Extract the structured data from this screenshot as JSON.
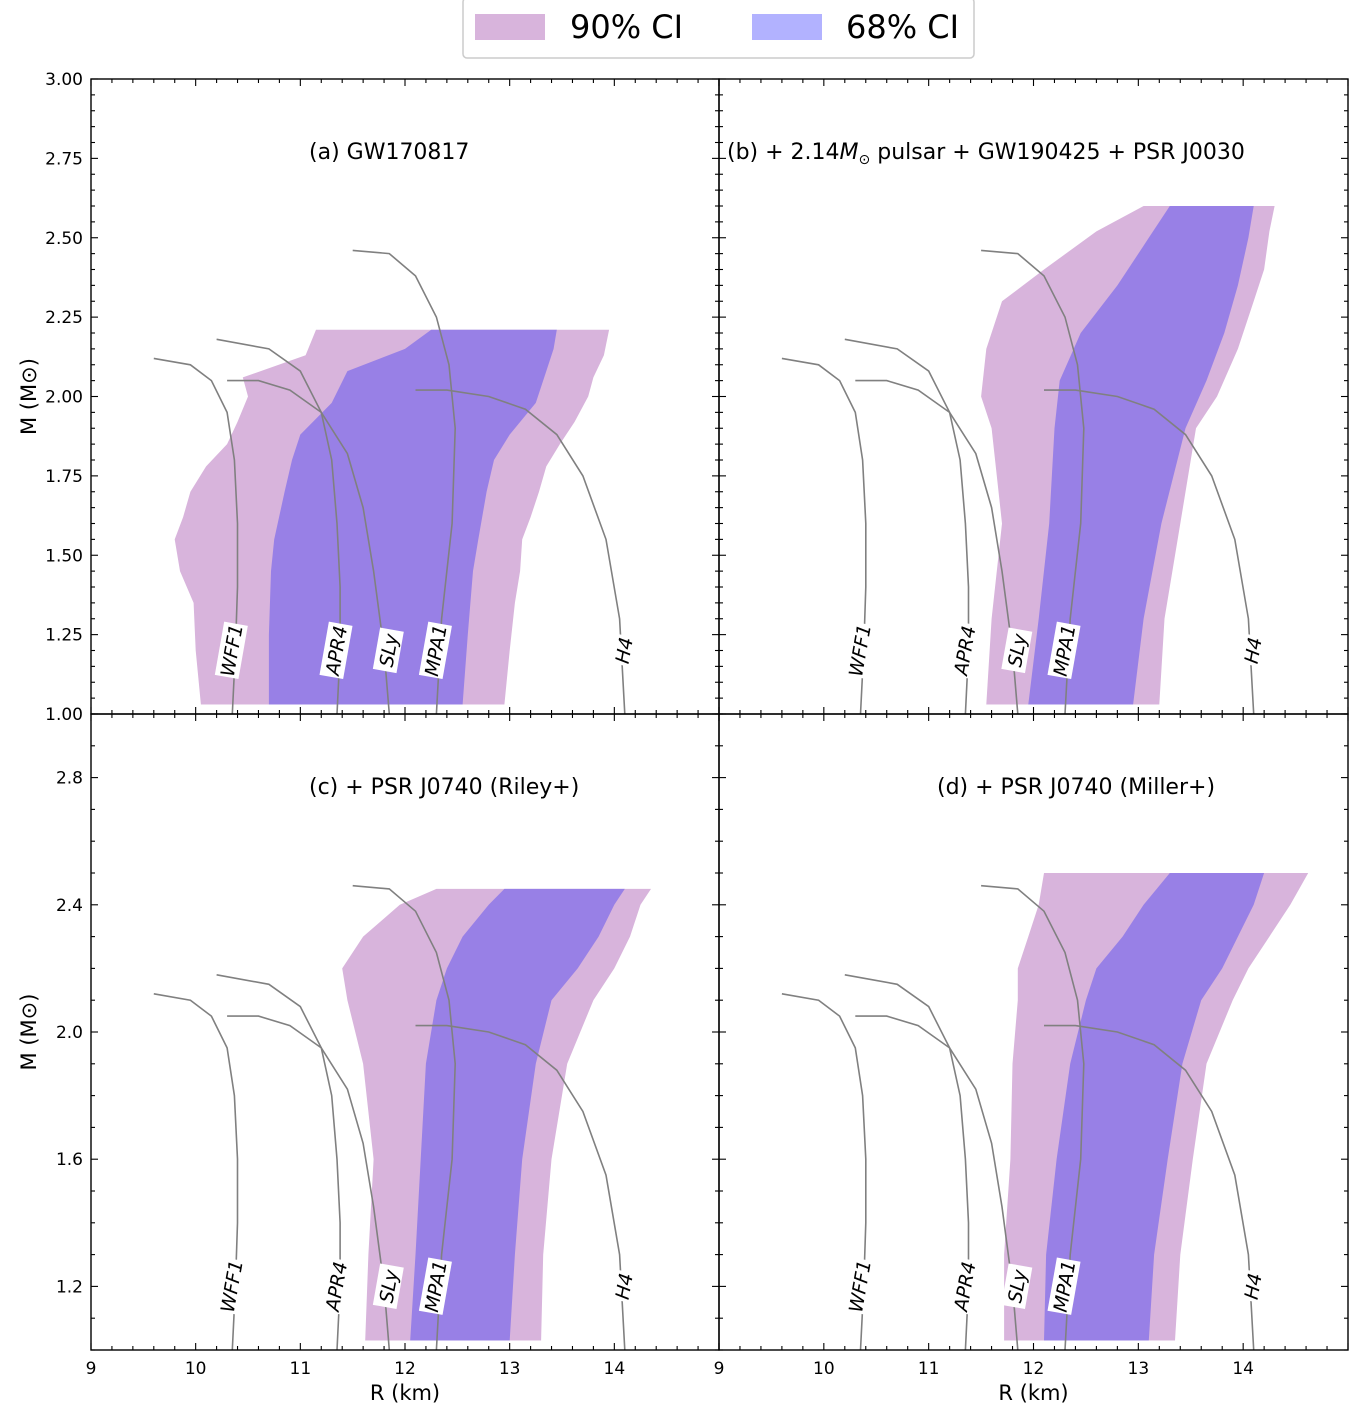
{
  "legend": [
    {
      "label": "90% CI",
      "color": "#d8b4dc"
    },
    {
      "label": "68% CI",
      "color": "#b2b2ff"
    }
  ],
  "colors": {
    "ci90": "#d8b4dc",
    "ci68": "#9880e6",
    "eos_curve": "#808080"
  },
  "chart_data": [
    {
      "type": "area",
      "panel": "a",
      "title_parts": [
        "(a) GW170817"
      ],
      "xlabel": "",
      "ylabel": "M (M⊙)",
      "xlim": [
        9,
        15
      ],
      "ylim": [
        1.0,
        3.0
      ],
      "yticks": [
        "1.00",
        "1.25",
        "1.50",
        "1.75",
        "2.00",
        "2.25",
        "2.50",
        "2.75",
        "3.00"
      ],
      "xticks": [],
      "ci90_bounds": {
        "mass": [
          1.03,
          1.2,
          1.35,
          1.45,
          1.55,
          1.62,
          1.7,
          1.78,
          1.85,
          1.92,
          2.0,
          2.06,
          2.13,
          2.21
        ],
        "r_left": [
          10.05,
          10.0,
          9.98,
          9.85,
          9.8,
          9.88,
          9.95,
          10.1,
          10.3,
          10.4,
          10.5,
          10.45,
          11.05,
          11.15
        ],
        "r_right": [
          12.95,
          13.0,
          13.05,
          13.1,
          13.12,
          13.2,
          13.28,
          13.35,
          13.48,
          13.62,
          13.75,
          13.8,
          13.9,
          13.95
        ]
      },
      "ci68_bounds": {
        "mass": [
          1.03,
          1.25,
          1.45,
          1.55,
          1.7,
          1.8,
          1.88,
          1.98,
          2.08,
          2.15,
          2.21
        ],
        "r_left": [
          10.7,
          10.7,
          10.72,
          10.75,
          10.85,
          10.92,
          11.0,
          11.3,
          11.45,
          12.0,
          12.25
        ],
        "r_right": [
          12.55,
          12.6,
          12.65,
          12.7,
          12.78,
          12.85,
          13.0,
          13.25,
          13.35,
          13.42,
          13.45
        ]
      },
      "eos_labels": [
        "WFF1",
        "APR4",
        "SLy",
        "MPA1",
        "H4"
      ]
    },
    {
      "type": "area",
      "panel": "b",
      "title_parts": [
        "(b) + 2.14",
        "M",
        "⊙",
        " pulsar +  GW190425 + PSR J0030"
      ],
      "xlabel": "",
      "ylabel": "",
      "xlim": [
        9,
        15
      ],
      "ylim": [
        1.0,
        3.0
      ],
      "xticks": [],
      "yticks": [],
      "ci90_bounds": {
        "mass": [
          1.03,
          1.3,
          1.6,
          1.9,
          2.0,
          2.15,
          2.3,
          2.4,
          2.52,
          2.6
        ],
        "r_left": [
          11.55,
          11.6,
          11.7,
          11.6,
          11.5,
          11.55,
          11.7,
          12.1,
          12.6,
          13.05
        ],
        "r_right": [
          13.2,
          13.25,
          13.4,
          13.55,
          13.75,
          13.95,
          14.1,
          14.2,
          14.25,
          14.3
        ]
      },
      "ci68_bounds": {
        "mass": [
          1.03,
          1.3,
          1.6,
          1.9,
          2.05,
          2.2,
          2.35,
          2.5,
          2.6
        ],
        "r_left": [
          11.95,
          12.05,
          12.15,
          12.2,
          12.25,
          12.45,
          12.8,
          13.1,
          13.3
        ],
        "r_right": [
          12.95,
          13.05,
          13.22,
          13.45,
          13.65,
          13.82,
          13.95,
          14.05,
          14.1
        ]
      },
      "eos_labels": [
        "WFF1",
        "APR4",
        "SLy",
        "MPA1",
        "H4"
      ]
    },
    {
      "type": "area",
      "panel": "c",
      "title_parts": [
        "(c) + PSR J0740 (Riley+)"
      ],
      "xlabel": "R (km)",
      "ylabel": "M (M⊙)",
      "xlim": [
        9,
        15
      ],
      "ylim": [
        1.0,
        3.0
      ],
      "xticks": [
        "9",
        "10",
        "11",
        "12",
        "13",
        "14"
      ],
      "yticks": [
        "1.2",
        "1.6",
        "2.0",
        "2.4",
        "2.8"
      ],
      "ci90_bounds": {
        "mass": [
          1.03,
          1.3,
          1.6,
          1.9,
          2.1,
          2.2,
          2.3,
          2.4,
          2.45
        ],
        "r_left": [
          11.62,
          11.65,
          11.7,
          11.6,
          11.45,
          11.4,
          11.6,
          11.95,
          12.3
        ],
        "r_right": [
          13.3,
          13.32,
          13.4,
          13.55,
          13.8,
          14.0,
          14.15,
          14.25,
          14.35
        ]
      },
      "ci68_bounds": {
        "mass": [
          1.03,
          1.3,
          1.6,
          1.9,
          2.1,
          2.2,
          2.3,
          2.4,
          2.45
        ],
        "r_left": [
          12.05,
          12.1,
          12.15,
          12.2,
          12.3,
          12.4,
          12.55,
          12.8,
          12.95
        ],
        "r_right": [
          13.0,
          13.05,
          13.12,
          13.25,
          13.4,
          13.65,
          13.85,
          14.0,
          14.1
        ]
      },
      "eos_labels": [
        "WFF1",
        "APR4",
        "SLy",
        "MPA1",
        "H4"
      ]
    },
    {
      "type": "area",
      "panel": "d",
      "title_parts": [
        "(d) + PSR J0740 (Miller+)"
      ],
      "xlabel": "R (km)",
      "ylabel": "",
      "xlim": [
        9,
        15
      ],
      "ylim": [
        1.0,
        3.0
      ],
      "xticks": [
        "9",
        "10",
        "11",
        "12",
        "13",
        "14"
      ],
      "yticks": [],
      "ci90_bounds": {
        "mass": [
          1.03,
          1.3,
          1.6,
          1.9,
          2.1,
          2.2,
          2.3,
          2.4,
          2.5
        ],
        "r_left": [
          11.72,
          11.72,
          11.78,
          11.8,
          11.85,
          11.85,
          11.95,
          12.05,
          12.1
        ],
        "r_right": [
          13.35,
          13.4,
          13.52,
          13.65,
          13.9,
          14.05,
          14.25,
          14.45,
          14.62
        ]
      },
      "ci68_bounds": {
        "mass": [
          1.03,
          1.3,
          1.6,
          1.9,
          2.1,
          2.2,
          2.3,
          2.4,
          2.5
        ],
        "r_left": [
          12.1,
          12.12,
          12.22,
          12.35,
          12.5,
          12.6,
          12.85,
          13.05,
          13.3
        ],
        "r_right": [
          13.1,
          13.15,
          13.28,
          13.42,
          13.6,
          13.8,
          13.95,
          14.1,
          14.2
        ]
      },
      "eos_labels": [
        "WFF1",
        "APR4",
        "SLy",
        "MPA1",
        "H4"
      ]
    }
  ]
}
